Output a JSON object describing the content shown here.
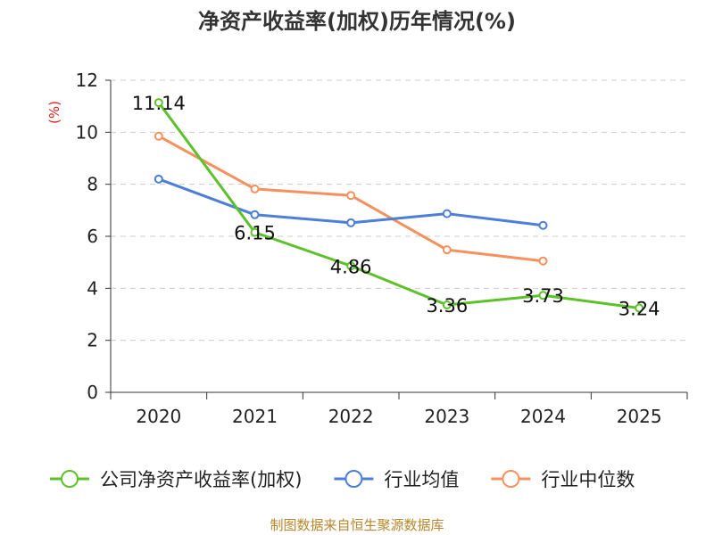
{
  "chart_data": {
    "type": "line",
    "title": "净资产收益率(加权)历年情况(%)",
    "ylabel": "(%)",
    "xlabel": "",
    "categories": [
      "2020",
      "2021",
      "2022",
      "2023",
      "2024",
      "2025"
    ],
    "ylim": [
      0,
      12
    ],
    "yticks": [
      0,
      2,
      4,
      6,
      8,
      10,
      12
    ],
    "grid": "horizontal dashed",
    "legend_position": "bottom",
    "series": [
      {
        "name": "公司净资产收益率(加权)",
        "color": "#5cc12a",
        "values": [
          11.14,
          6.15,
          4.86,
          3.36,
          3.73,
          3.24
        ],
        "labels_shown": true
      },
      {
        "name": "行业均值",
        "color": "#4b7fd8",
        "values": [
          8.2,
          6.83,
          6.52,
          6.87,
          6.42,
          null
        ],
        "labels_shown": false
      },
      {
        "name": "行业中位数",
        "color": "#f6915e",
        "values": [
          9.85,
          7.82,
          7.57,
          5.48,
          5.05,
          null
        ],
        "labels_shown": false
      }
    ],
    "source": "制图数据来自恒生聚源数据库"
  }
}
